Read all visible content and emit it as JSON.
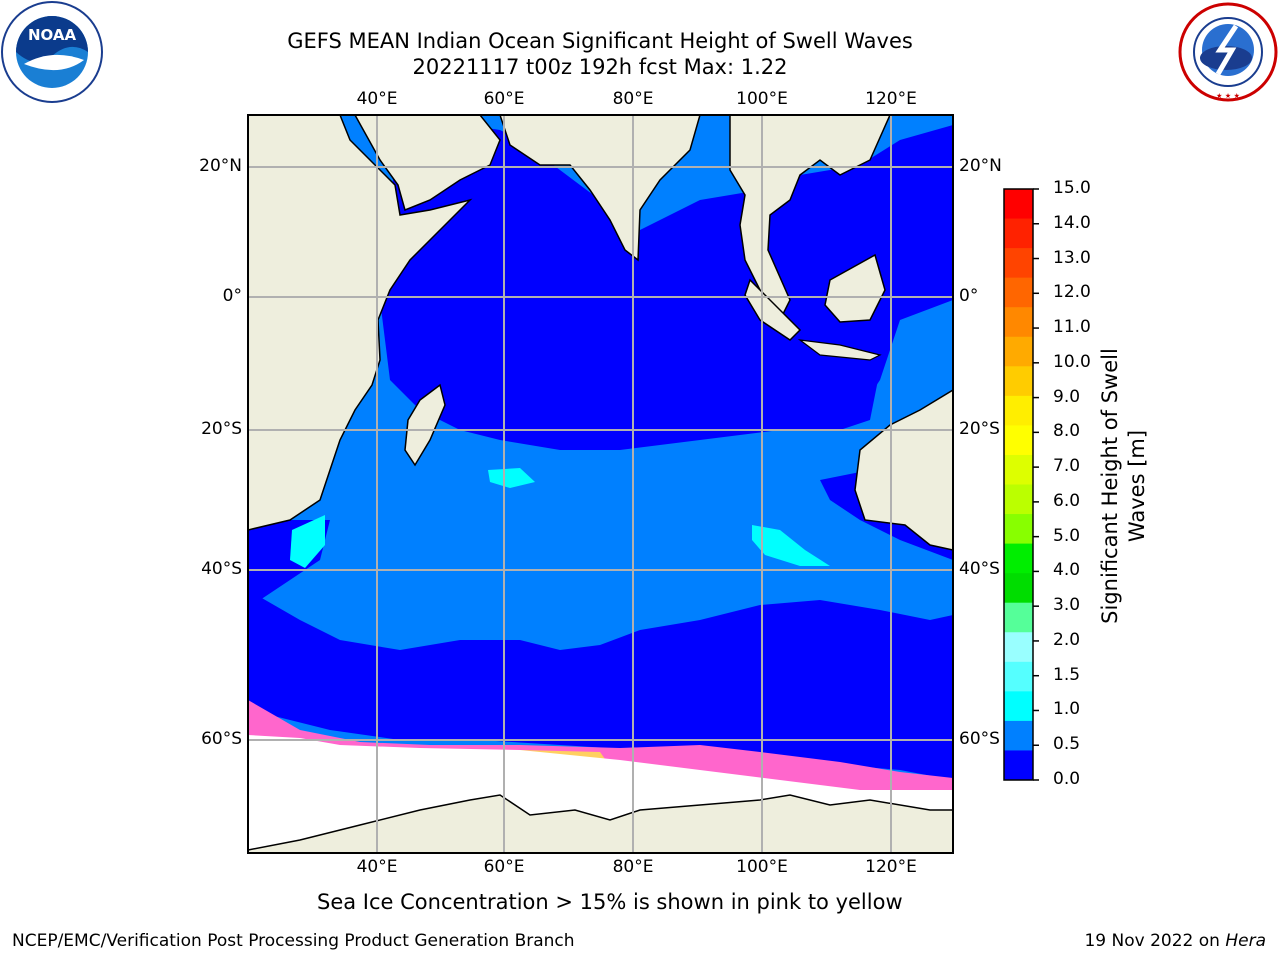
{
  "title": {
    "line1": "GEFS MEAN Indian Ocean Significant Height of Swell Waves",
    "line2": "20221117 t00z 192h fcst   Max: 1.22"
  },
  "logos": {
    "left": "noaa-logo",
    "right": "national-weather-service-logo",
    "left_text": "NOAA",
    "right_text": "NATIONAL WEATHER SERVICE"
  },
  "map": {
    "lon_ticks_top": [
      "40°E",
      "60°E",
      "80°E",
      "100°E",
      "120°E"
    ],
    "lon_ticks_bottom": [
      "40°E",
      "60°E",
      "80°E",
      "100°E",
      "120°E"
    ],
    "lat_ticks_left": [
      "20°N",
      "0°",
      "20°S",
      "40°S",
      "60°S"
    ],
    "lat_ticks_right": [
      "20°N",
      "0°",
      "20°S",
      "40°S",
      "60°S"
    ],
    "colors": {
      "land": "#eeeedd",
      "swell_0_0_5": "#0000ff",
      "swell_0_5_1_0": "#0080ff",
      "swell_1_0_1_5": "#00ffff",
      "sea_ice_low": "#ff66cc",
      "sea_ice_high": "#ffd060",
      "sea_ice_white": "#ffffff",
      "grid": "#b0b0b0"
    }
  },
  "colorbar": {
    "label": "Significant Height of Swell Waves [m]",
    "ticks": [
      "15.0",
      "14.0",
      "13.0",
      "12.0",
      "11.0",
      "10.0",
      "9.0",
      "8.0",
      "7.0",
      "6.0",
      "5.0",
      "4.0",
      "3.0",
      "2.0",
      "1.5",
      "1.0",
      "0.5",
      "0.0"
    ],
    "colors_top_to_bottom": [
      "#ff0000",
      "#ff2200",
      "#ff4400",
      "#ff6600",
      "#ff8800",
      "#ffaa00",
      "#ffcc00",
      "#ffee00",
      "#ffff00",
      "#ddff00",
      "#bbff00",
      "#88ff00",
      "#00ee00",
      "#00dd00",
      "#55ff99",
      "#99ffff",
      "#55ffff",
      "#00ffff",
      "#0080ff",
      "#0000ff"
    ]
  },
  "caption": "Sea Ice Concentration > 15% is shown in pink to yellow",
  "footer": {
    "left": "NCEP/EMC/Verification Post Processing Product Generation Branch",
    "right_date": "19 Nov 2022 on ",
    "right_host": "Hera"
  }
}
